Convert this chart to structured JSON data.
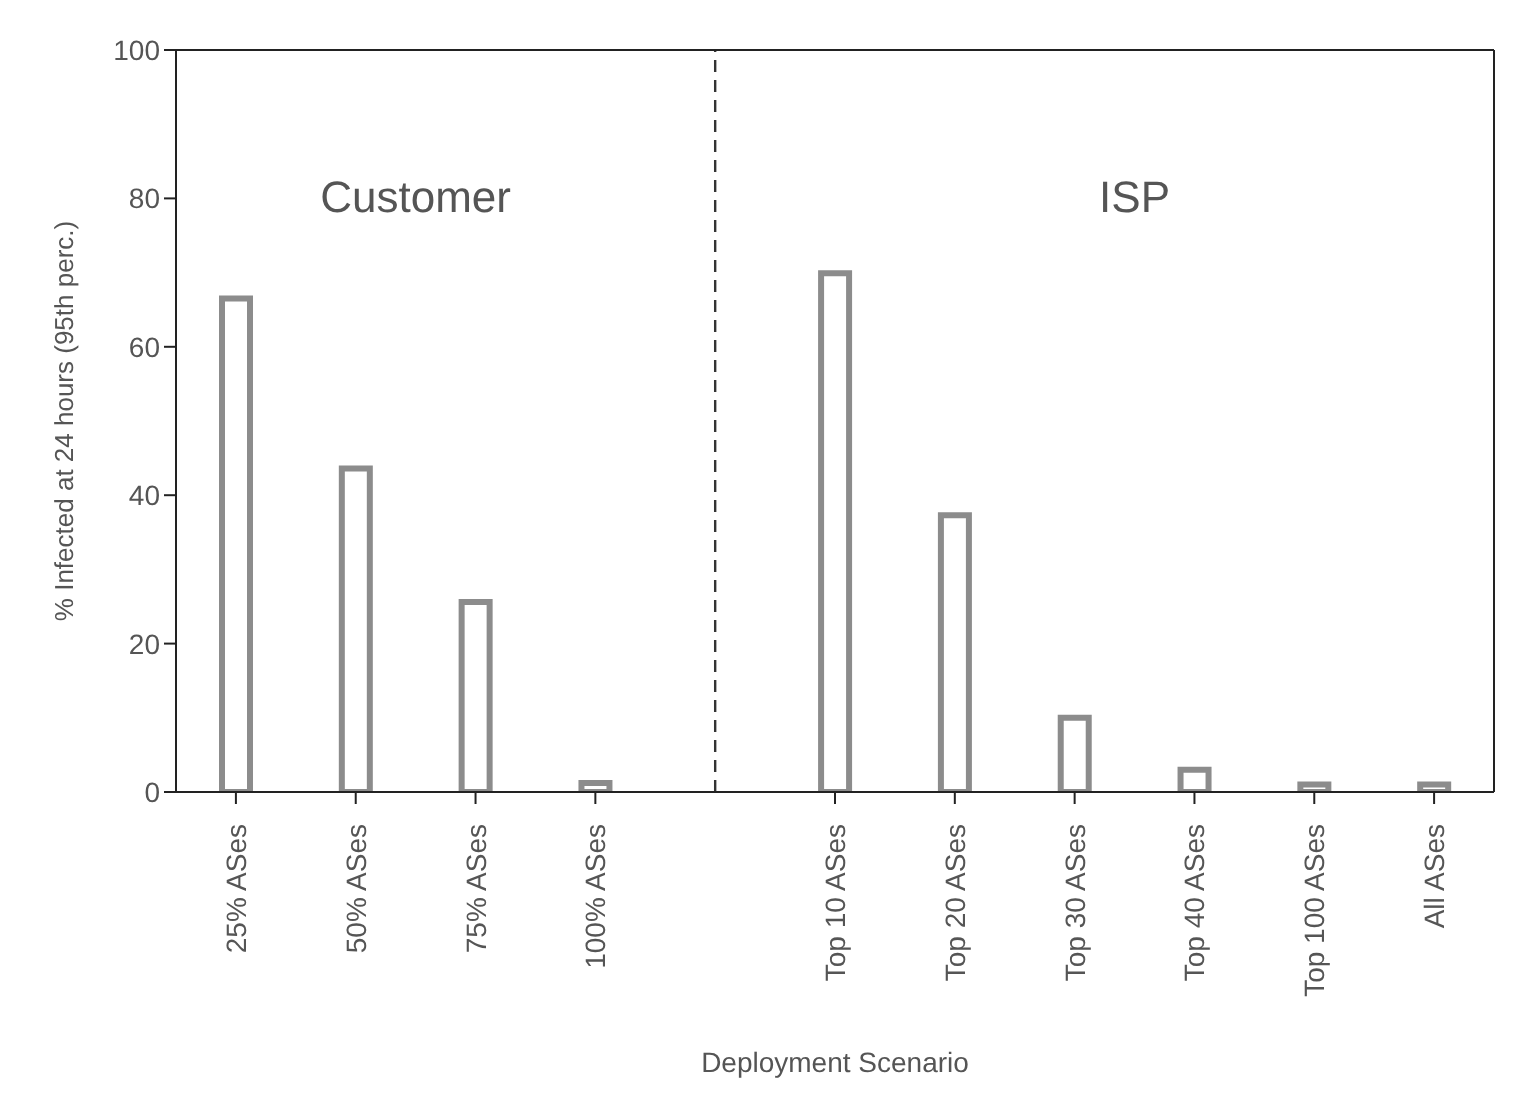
{
  "chart_data": {
    "type": "bar",
    "xlabel": "Deployment Scenario",
    "ylabel": "% Infected at 24 hours (95th perc.)",
    "categories": [
      "25% ASes",
      "50% ASes",
      "75% ASes",
      "100% ASes",
      null,
      "Top 10 ASes",
      "Top 20 ASes",
      "Top 30 ASes",
      "Top 40 ASes",
      "Top 100 ASes",
      "All ASes"
    ],
    "values": [
      66.5,
      43.6,
      25.6,
      1.2,
      null,
      69.9,
      37.3,
      10.0,
      3.0,
      1.0,
      1.0
    ],
    "color": "#8c8c8c",
    "ylim": [
      0,
      100
    ],
    "yticks": [
      0,
      20,
      40,
      60,
      80,
      100
    ],
    "ref_lines": [
      {
        "axis": "x",
        "line_style": "dashed",
        "color": "#333333"
      }
    ],
    "annotations": [
      "Customer",
      "ISP"
    ]
  }
}
